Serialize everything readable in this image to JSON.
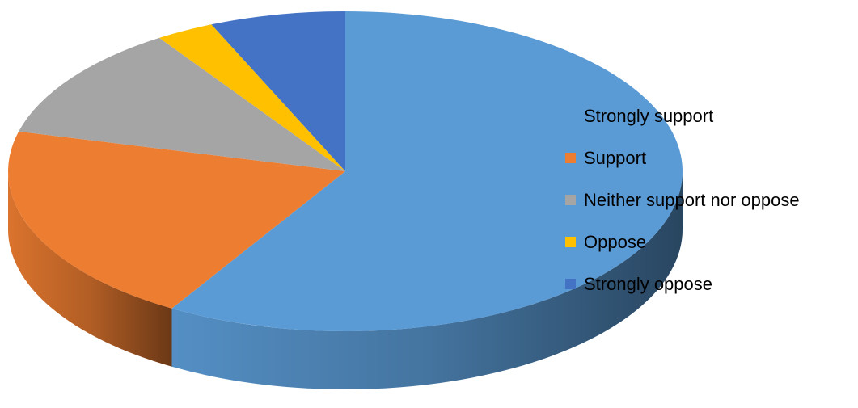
{
  "chart_data": {
    "type": "pie",
    "style": "3d",
    "title": "",
    "legend_position": "right",
    "categories": [
      "Strongly support",
      "Support",
      "Neither support nor oppose",
      "Oppose",
      "Strongly oppose"
    ],
    "values": [
      58.6,
      20.4,
      11.7,
      2.8,
      6.5
    ],
    "unit": "percent",
    "colors": [
      "#5B9BD5",
      "#ED7D31",
      "#A5A5A5",
      "#FFC000",
      "#4472C4"
    ]
  }
}
